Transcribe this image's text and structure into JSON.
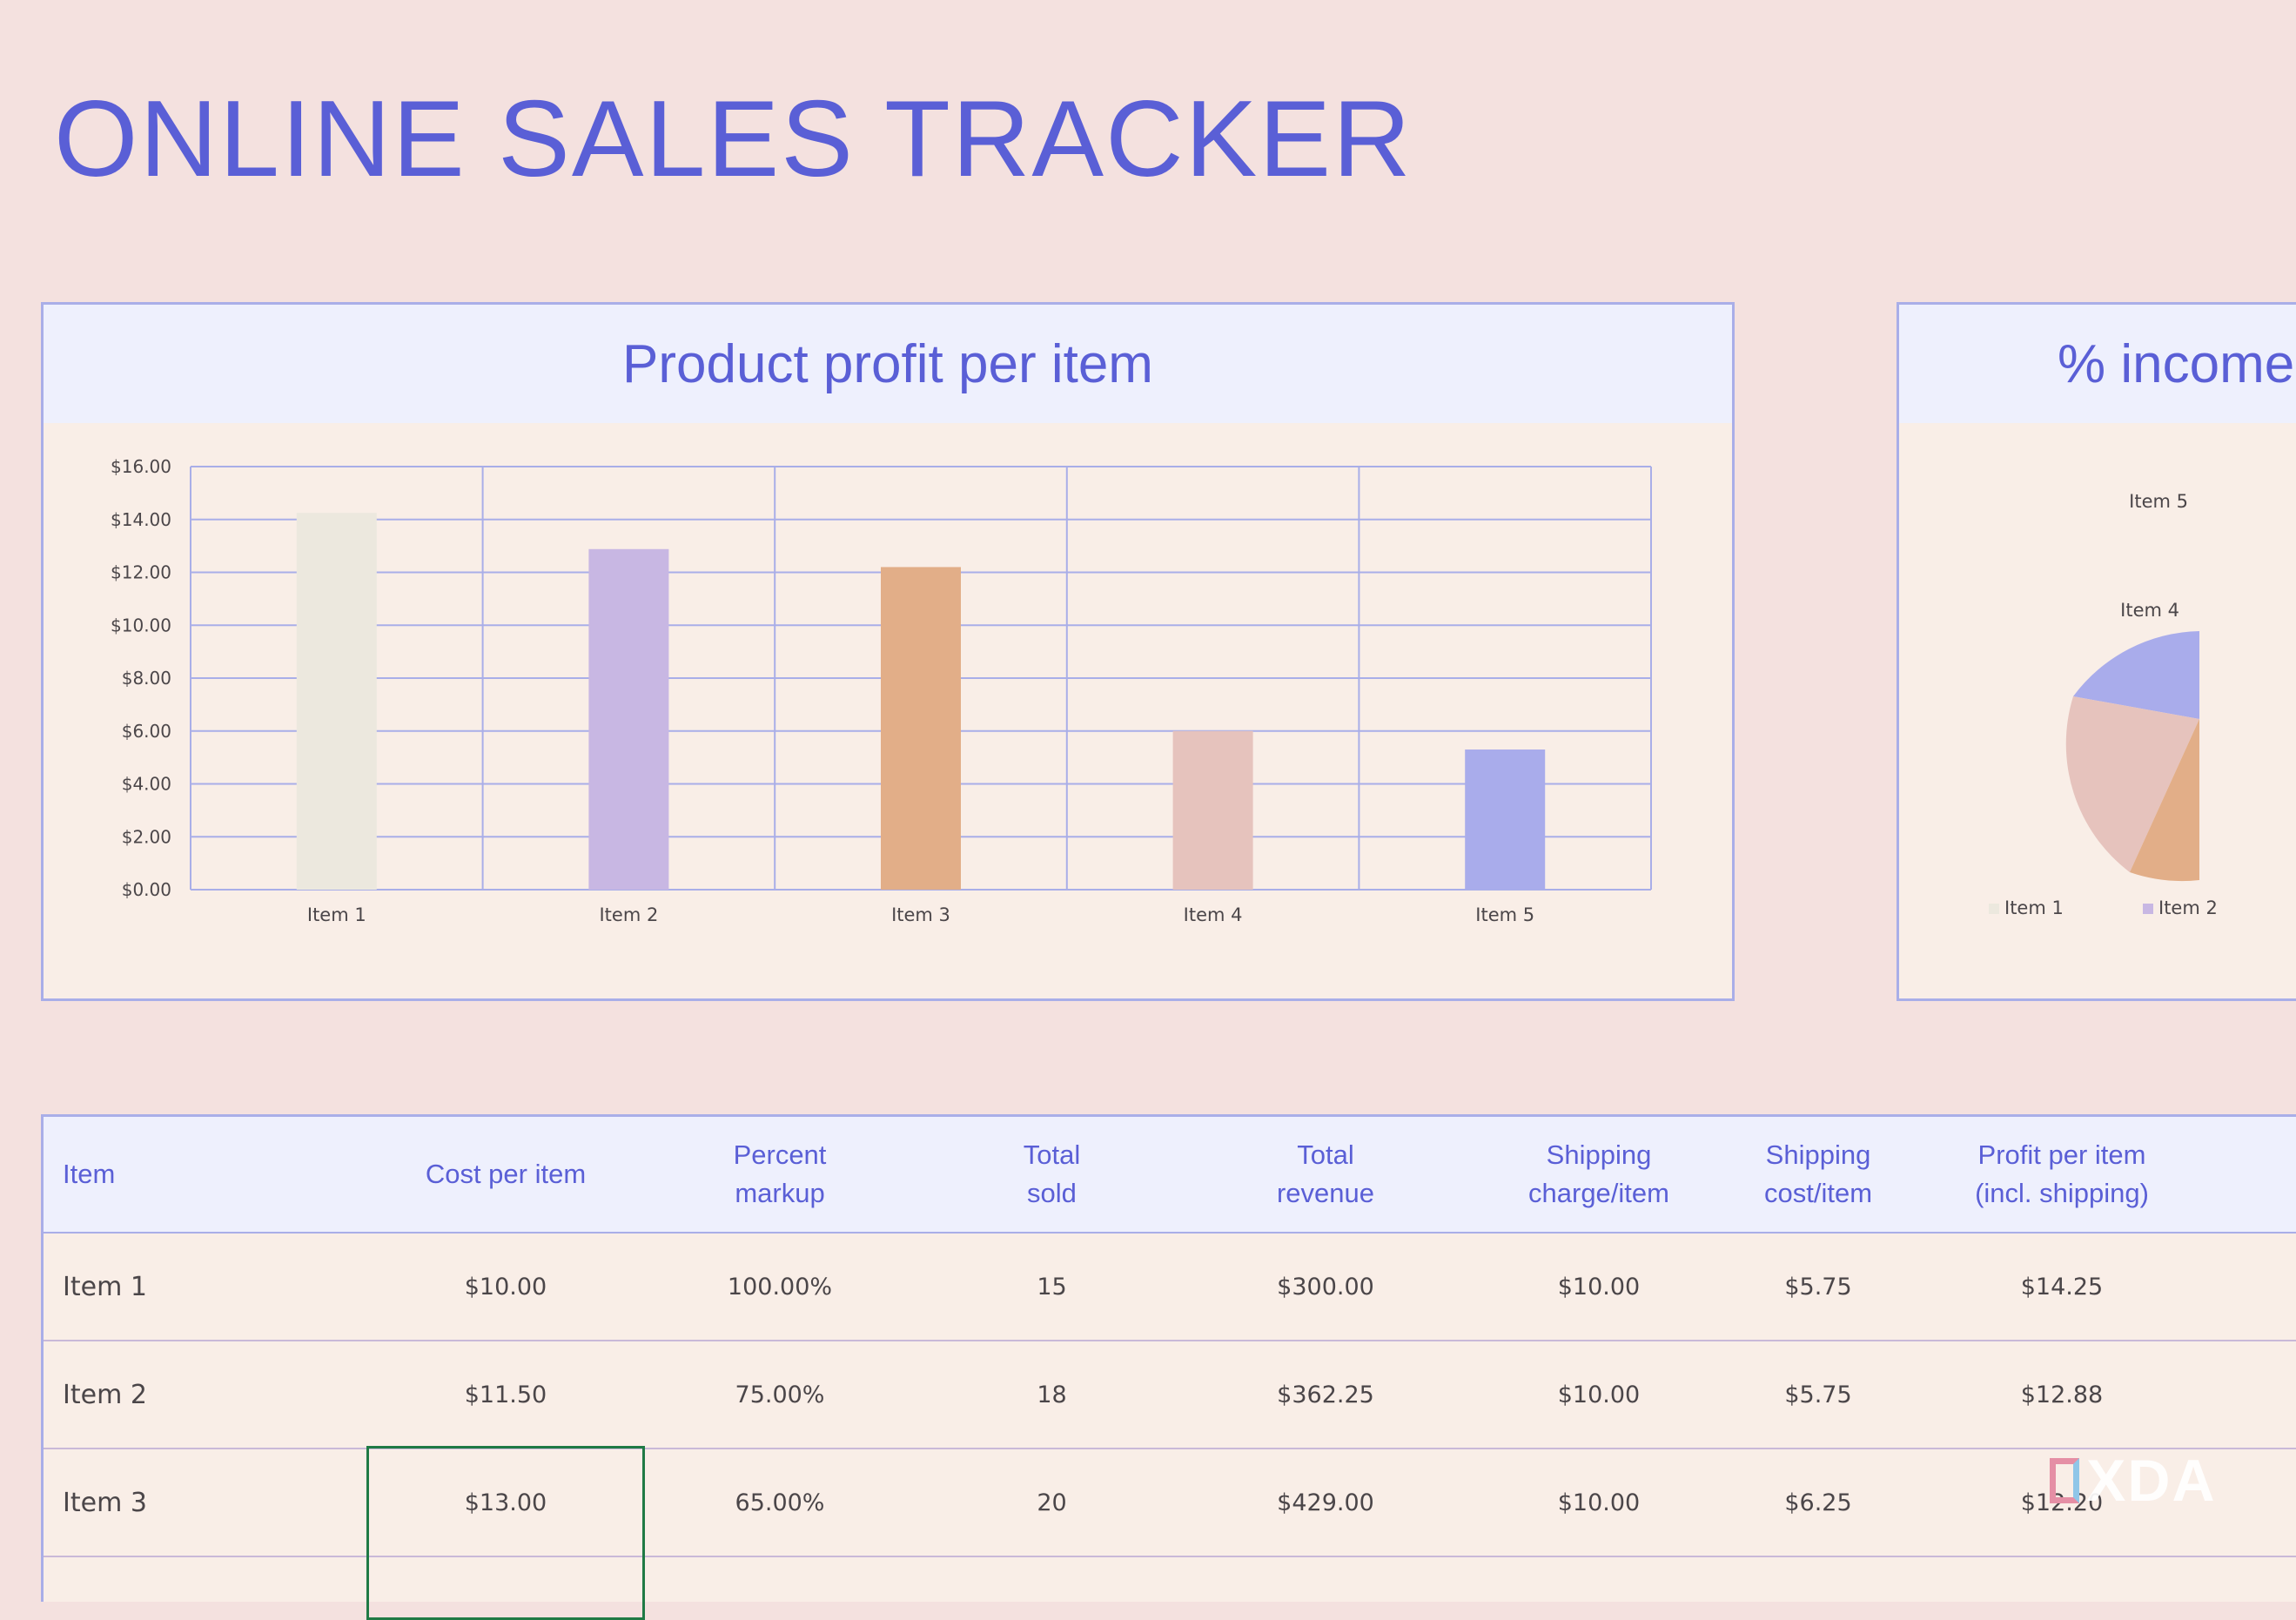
{
  "title": "ONLINE SALES TRACKER",
  "colors": {
    "accent": "#5a5fd6",
    "item1": "#ece8de",
    "item2": "#c8b7e3",
    "item3": "#e2ae88",
    "item4": "#e6c3bd",
    "item5": "#a9aceb"
  },
  "chart_data": [
    {
      "type": "bar",
      "title": "Product profit per item",
      "categories": [
        "Item 1",
        "Item 2",
        "Item 3",
        "Item 4",
        "Item 5"
      ],
      "values": [
        14.25,
        12.88,
        12.2,
        6.0,
        5.3
      ],
      "ylim": [
        0,
        16
      ],
      "yticks": [
        "$0.00",
        "$2.00",
        "$4.00",
        "$6.00",
        "$8.00",
        "$10.00",
        "$12.00",
        "$14.00",
        "$16.00"
      ],
      "grid": true
    },
    {
      "type": "pie",
      "title": "% income",
      "visible_labels": [
        "Item 5",
        "Item 4"
      ],
      "legend": [
        "Item 1",
        "Item 2"
      ],
      "legend_position": "bottom"
    }
  ],
  "table": {
    "headers": [
      "Item",
      "Cost per item",
      "Percent\nmarkup",
      "Total\nsold",
      "Total\nrevenue",
      "Shipping\ncharge/item",
      "Shipping\ncost/item",
      "Profit per item\n(incl. shipping)"
    ],
    "rows": [
      [
        "Item 1",
        "$10.00",
        "100.00%",
        "15",
        "$300.00",
        "$10.00",
        "$5.75",
        "$14.25"
      ],
      [
        "Item 2",
        "$11.50",
        "75.00%",
        "18",
        "$362.25",
        "$10.00",
        "$5.75",
        "$12.88"
      ],
      [
        "Item 3",
        "$13.00",
        "65.00%",
        "20",
        "$429.00",
        "$10.00",
        "$6.25",
        "$12.20"
      ]
    ]
  },
  "watermark": "XDA"
}
